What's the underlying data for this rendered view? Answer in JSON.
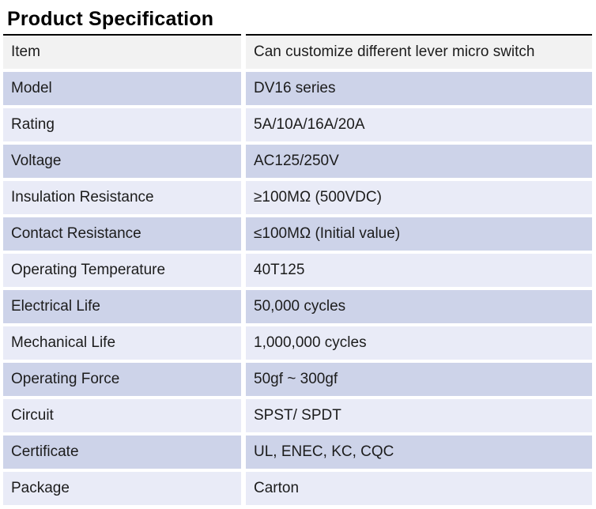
{
  "page": {
    "title": "Product Specification"
  },
  "table": {
    "columns": [
      "label",
      "value"
    ],
    "rows": [
      {
        "label": "Item",
        "value": "Can customize different lever micro switch"
      },
      {
        "label": "Model",
        "value": "DV16 series"
      },
      {
        "label": "Rating",
        "value": "5A/10A/16A/20A"
      },
      {
        "label": "Voltage",
        "value": "AC125/250V"
      },
      {
        "label": "Insulation Resistance",
        "value": "≥100MΩ (500VDC)"
      },
      {
        "label": "Contact Resistance",
        "value": "≤100MΩ (Initial value)"
      },
      {
        "label": "Operating Temperature",
        "value": "40T125"
      },
      {
        "label": "Electrical Life",
        "value": "50,000 cycles"
      },
      {
        "label": "Mechanical Life",
        "value": "1,000,000 cycles"
      },
      {
        "label": "Operating Force",
        "value": "50gf ~ 300gf"
      },
      {
        "label": "Circuit",
        "value": "SPST/ SPDT"
      },
      {
        "label": "Certificate",
        "value": "UL, ENEC, KC, CQC"
      },
      {
        "label": "Package",
        "value": "Carton"
      }
    ],
    "colors": {
      "header_row_bg": "#f2f2f2",
      "lavender_row_bg": "#cdd3e9",
      "pale_row_bg": "#e9ebf7",
      "top_rule": "#000000",
      "text": "#1c1c1c"
    }
  }
}
